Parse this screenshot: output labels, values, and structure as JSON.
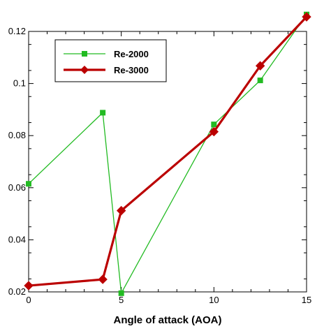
{
  "chart_data": {
    "type": "line",
    "title": "",
    "xlabel": "Angle of attack (AOA)",
    "ylabel": "",
    "xlim": [
      0,
      15
    ],
    "ylim": [
      0.02,
      0.12
    ],
    "xticks": [
      0,
      5,
      10,
      15
    ],
    "yticks": [
      0.02,
      0.04,
      0.06,
      0.08,
      0.1,
      0.12
    ],
    "xtick_labels": [
      "0",
      "5",
      "10",
      "15"
    ],
    "ytick_labels": [
      "0.02",
      "0.04",
      "0.06",
      "0.08",
      "0.1",
      "0.12"
    ],
    "grid": false,
    "legend_position": "top-left",
    "series": [
      {
        "name": "Re-2000",
        "color": "#22bb22",
        "marker": "square",
        "x": [
          0,
          4,
          5,
          10,
          12.5,
          15
        ],
        "y": [
          0.0615,
          0.0888,
          0.0195,
          0.0843,
          0.1012,
          0.1265
        ]
      },
      {
        "name": "Re-3000",
        "color": "#bb0000",
        "marker": "diamond",
        "x": [
          0,
          4,
          5,
          10,
          12.5,
          15
        ],
        "y": [
          0.0224,
          0.0248,
          0.0512,
          0.0815,
          0.1068,
          0.1256
        ]
      }
    ]
  }
}
